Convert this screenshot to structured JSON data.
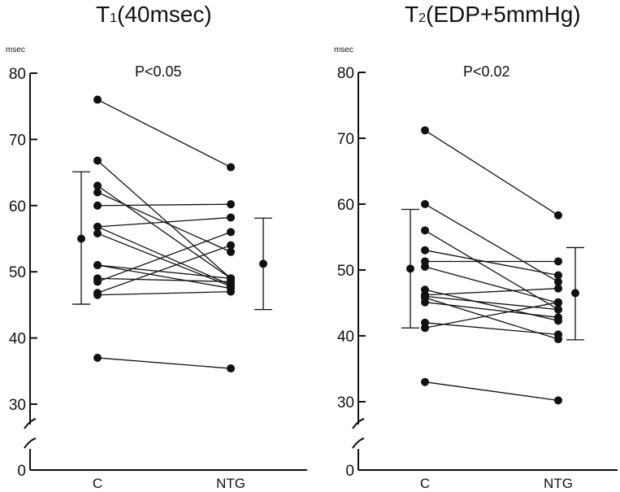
{
  "chart_data": [
    {
      "type": "scatter",
      "title": "T",
      "title_sub": "1",
      "title_rest": "(40msec)",
      "unit": "msec",
      "annotation": "P<0.05",
      "categories": [
        "C",
        "NTG"
      ],
      "y_ticks": [
        30,
        40,
        50,
        60,
        70,
        80
      ],
      "y_zero_label": "0",
      "ylim": [
        30,
        80
      ],
      "axis_break": true,
      "pairs": [
        [
          76,
          65.8
        ],
        [
          66.8,
          49
        ],
        [
          63,
          49
        ],
        [
          62,
          53
        ],
        [
          60,
          60.2
        ],
        [
          56.8,
          58.2
        ],
        [
          56.8,
          48
        ],
        [
          55.8,
          47.8
        ],
        [
          51,
          47.5
        ],
        [
          51,
          49
        ],
        [
          49,
          48.5
        ],
        [
          48.5,
          56
        ],
        [
          46.8,
          54
        ],
        [
          46.5,
          47
        ],
        [
          37,
          35.4
        ]
      ],
      "mean_sd": {
        "C": {
          "mean": 55,
          "upper": 65.1,
          "lower": 45.1
        },
        "NTG": {
          "mean": 51.2,
          "upper": 58.1,
          "lower": 44.3
        }
      }
    },
    {
      "type": "scatter",
      "title": "T",
      "title_sub": "2",
      "title_rest": "(EDP+5mmHg)",
      "unit": "msec",
      "annotation": "P<0.02",
      "categories": [
        "C",
        "NTG"
      ],
      "y_ticks": [
        30,
        40,
        50,
        60,
        70,
        80
      ],
      "y_zero_label": "0",
      "ylim": [
        30,
        80
      ],
      "axis_break": true,
      "pairs": [
        [
          71.2,
          58.3
        ],
        [
          60,
          48.2
        ],
        [
          56,
          44
        ],
        [
          53,
          49.2
        ],
        [
          51.3,
          51.3
        ],
        [
          50.5,
          45
        ],
        [
          47,
          42.3
        ],
        [
          46.2,
          47.2
        ],
        [
          45.8,
          39.5
        ],
        [
          45.1,
          42.8
        ],
        [
          42,
          40.2
        ],
        [
          41.2,
          45.1
        ],
        [
          46,
          44
        ],
        [
          33,
          30.2
        ]
      ],
      "mean_sd": {
        "C": {
          "mean": 50.2,
          "upper": 59.2,
          "lower": 41.2
        },
        "NTG": {
          "mean": 46.5,
          "upper": 53.4,
          "lower": 39.4
        }
      }
    }
  ]
}
